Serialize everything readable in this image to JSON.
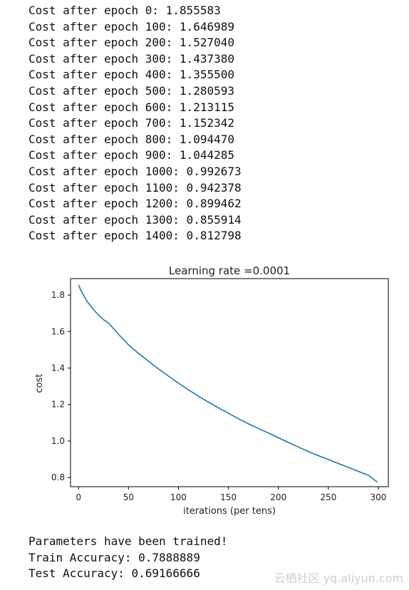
{
  "log_lines": [
    "Cost after epoch 0: 1.855583",
    "Cost after epoch 100: 1.646989",
    "Cost after epoch 200: 1.527040",
    "Cost after epoch 300: 1.437380",
    "Cost after epoch 400: 1.355500",
    "Cost after epoch 500: 1.280593",
    "Cost after epoch 600: 1.213115",
    "Cost after epoch 700: 1.152342",
    "Cost after epoch 800: 1.094470",
    "Cost after epoch 900: 1.044285",
    "Cost after epoch 1000: 0.992673",
    "Cost after epoch 1100: 0.942378",
    "Cost after epoch 1200: 0.899462",
    "Cost after epoch 1300: 0.855914",
    "Cost after epoch 1400: 0.812798"
  ],
  "results": {
    "trained": "Parameters have been trained!",
    "train_accuracy": "Train Accuracy: 0.7888889",
    "test_accuracy": "Test Accuracy: 0.69166666"
  },
  "watermark": "云栖社区 yq.aliyun.com",
  "chart_data": {
    "type": "line",
    "title": "Learning rate =0.0001",
    "xlabel": "iterations (per tens)",
    "ylabel": "cost",
    "xlim": [
      -8,
      310
    ],
    "ylim": [
      0.75,
      1.89
    ],
    "xticks": [
      0,
      50,
      100,
      150,
      200,
      250,
      300
    ],
    "yticks": [
      0.8,
      1.0,
      1.2,
      1.4,
      1.6,
      1.8
    ],
    "grid": false,
    "line_color": "#1f77b4",
    "series": [
      {
        "x": [
          0,
          2,
          4,
          6,
          8,
          10,
          15,
          20,
          25,
          30,
          40,
          50,
          60,
          70,
          80,
          90,
          100,
          110,
          120,
          130,
          140,
          150,
          160,
          170,
          180,
          190,
          200,
          210,
          220,
          230,
          240,
          250,
          260,
          270,
          280,
          290,
          299
        ],
        "y": [
          1.855583,
          1.83,
          1.81,
          1.79,
          1.77,
          1.755,
          1.72,
          1.69,
          1.665,
          1.646989,
          1.585,
          1.52704,
          1.48,
          1.43738,
          1.395,
          1.3555,
          1.317,
          1.280593,
          1.246,
          1.213115,
          1.182,
          1.152342,
          1.122,
          1.09447,
          1.069,
          1.044285,
          1.018,
          0.992673,
          0.967,
          0.942378,
          0.92,
          0.899462,
          0.877,
          0.855914,
          0.834,
          0.812798,
          0.775
        ]
      }
    ]
  }
}
